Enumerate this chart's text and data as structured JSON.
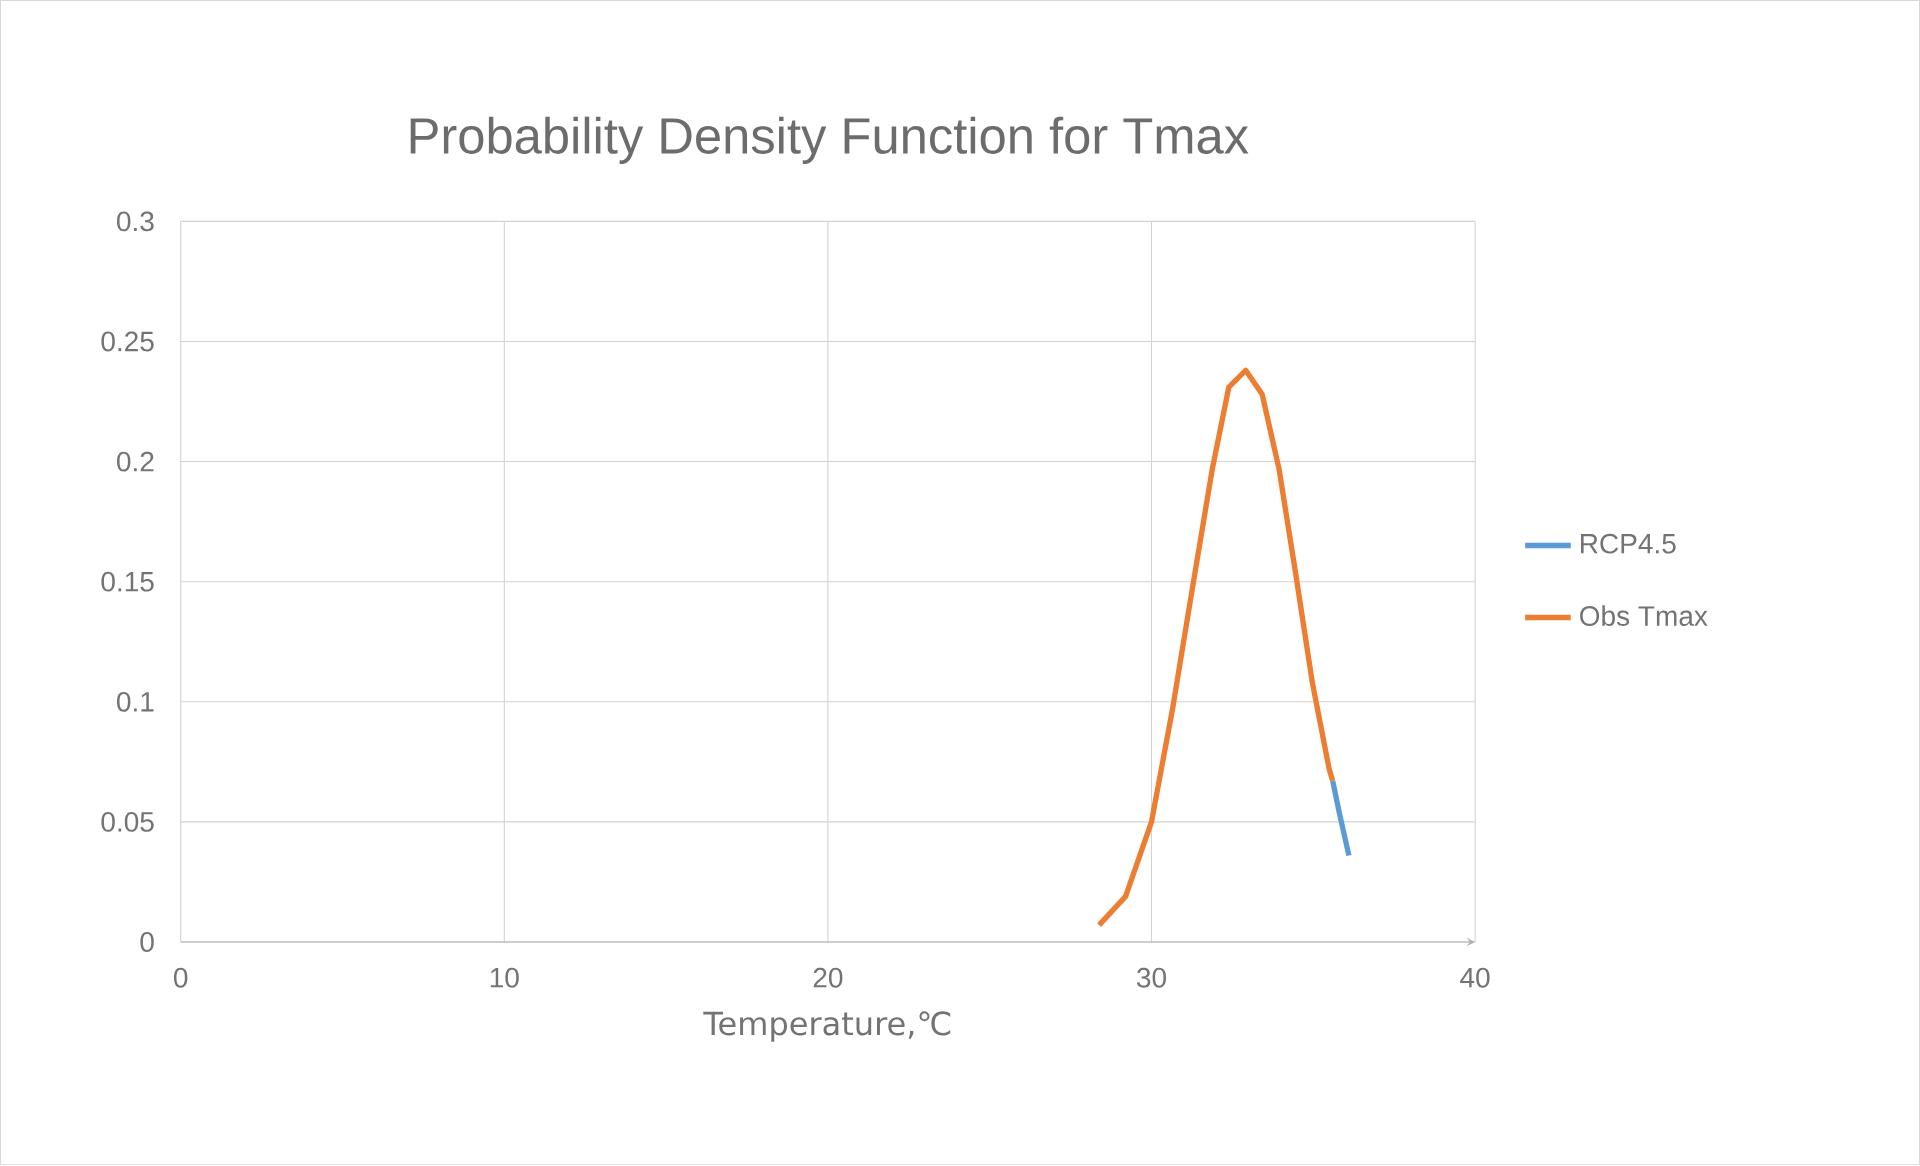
{
  "chart_data": {
    "type": "line",
    "title": "Probability Density Function for Tmax",
    "xlabel": "Temperature,℃",
    "xlim": [
      0,
      40
    ],
    "xticks": [
      0,
      10,
      20,
      30,
      40
    ],
    "ylim": [
      0,
      0.3
    ],
    "yticks": [
      0,
      0.05,
      0.1,
      0.15,
      0.2,
      0.25,
      0.3
    ],
    "grid": true,
    "legend": "right",
    "series": [
      {
        "name": "RCP4.5",
        "color": "#5b9bd5",
        "x": [
          35.6,
          35.8,
          36.1
        ],
        "values": [
          0.067,
          0.054,
          0.036
        ]
      },
      {
        "name": "Obs Tmax",
        "color": "#ed7d31",
        "x": [
          28.38,
          29.2,
          30.0,
          30.65,
          31.26,
          31.88,
          32.39,
          32.91,
          33.42,
          33.94,
          34.46,
          34.97,
          35.49,
          35.6
        ],
        "values": [
          0.007,
          0.019,
          0.05,
          0.097,
          0.147,
          0.197,
          0.231,
          0.238,
          0.228,
          0.197,
          0.153,
          0.108,
          0.072,
          0.067
        ]
      }
    ]
  }
}
